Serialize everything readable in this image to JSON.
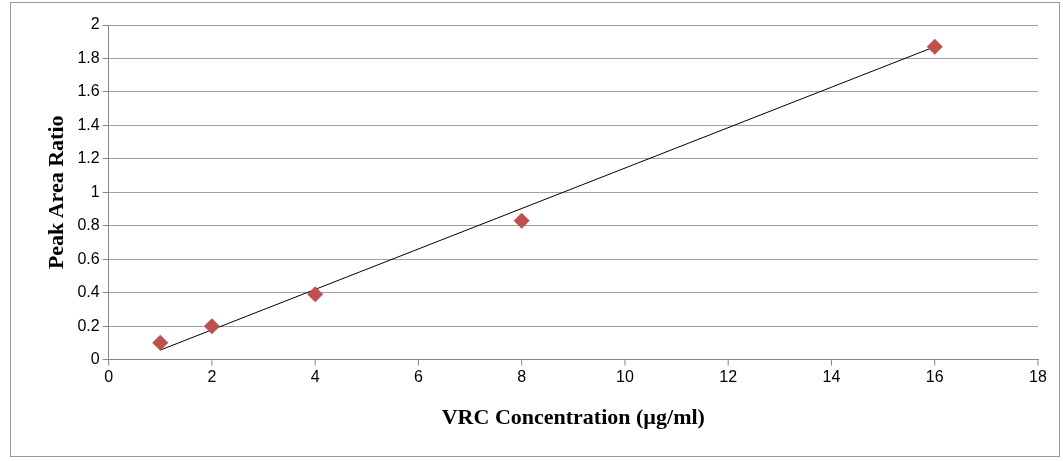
{
  "chart_data": {
    "type": "scatter",
    "xlabel": "VRC Concentration (µg/ml)",
    "ylabel": "Peak Area Ratio",
    "xlim": [
      0,
      18
    ],
    "xticks": [
      0,
      2,
      4,
      6,
      8,
      10,
      12,
      14,
      16,
      18
    ],
    "ylim": [
      0,
      2
    ],
    "yticks": [
      0,
      0.2,
      0.4,
      0.6,
      0.8,
      1,
      1.2,
      1.4,
      1.6,
      1.8,
      2
    ],
    "grid": "y",
    "legend": false,
    "series": [
      {
        "type": "scatter",
        "color": "#c0504d",
        "marker": "diamond",
        "x": [
          1,
          2,
          4,
          8,
          16
        ],
        "values": [
          0.1,
          0.2,
          0.39,
          0.83,
          1.87
        ]
      },
      {
        "type": "line",
        "color": "#000000",
        "marker": "none",
        "x": [
          1,
          16
        ],
        "values": [
          0.057,
          1.87
        ]
      }
    ]
  }
}
